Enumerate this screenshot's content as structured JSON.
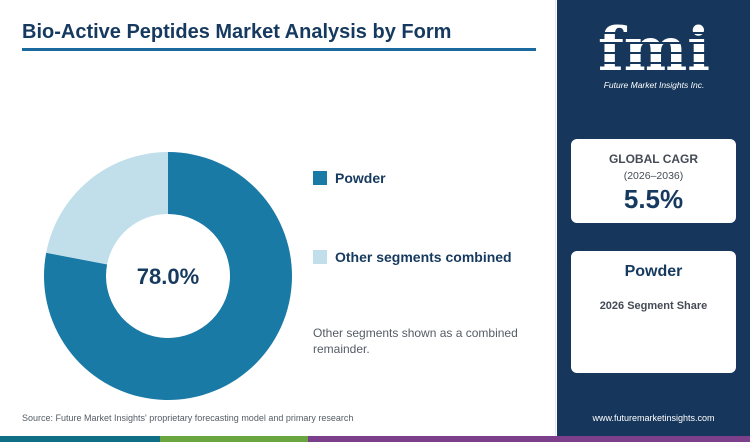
{
  "header": {
    "title": "Bio-Active Peptides Market Analysis by Form"
  },
  "chart_data": {
    "type": "pie",
    "variant": "donut",
    "categories": [
      "Powder",
      "Other segments combined"
    ],
    "values": [
      78.0,
      22.0
    ],
    "colors": [
      "#1a7aa6",
      "#c0dfea"
    ],
    "center_label": "78.0%",
    "legend_position": "right",
    "title": "Bio-Active Peptides Market Analysis by Form"
  },
  "note": "Other segments shown as a combined remainder.",
  "source": "Source: Future Market Insights' proprietary forecasting model and primary research",
  "brand": {
    "logo_text": "fmi",
    "logo_subtext": "Future Market Insights Inc.",
    "website": "www.futuremarketinsights.com",
    "logo_icon": "fmi-logo-icon"
  },
  "cagr_card": {
    "label": "GLOBAL CAGR",
    "range": "(2026–2036)",
    "value": "5.5%"
  },
  "segment_card": {
    "name": "Powder",
    "caption": "2026 Segment Share"
  },
  "colors": {
    "accent": "#1a7aa6",
    "navy": "#16375b",
    "title": "#163a5f",
    "bottom_bar": [
      "#0f6f84",
      "#6aa63f",
      "#e07a2e",
      "#7b3f8c"
    ]
  }
}
